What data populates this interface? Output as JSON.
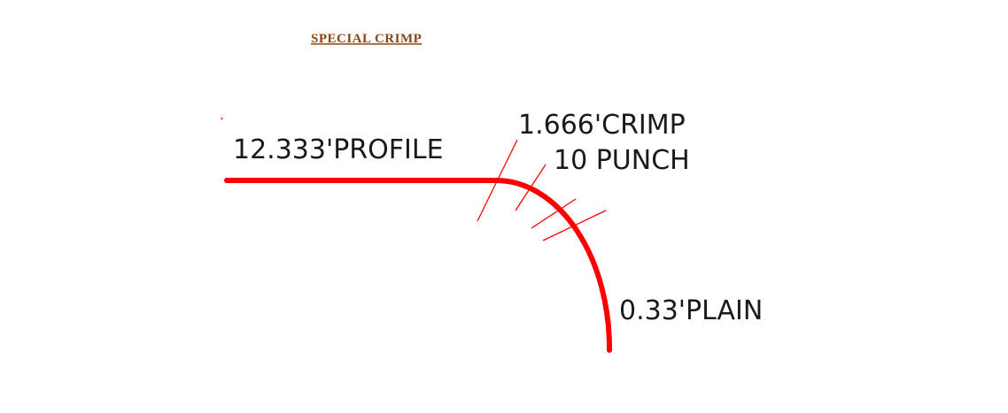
{
  "title": "SPECIAL CRIMP",
  "labels": {
    "profile": "12.333'PROFILE",
    "crimp": "1.666'CRIMP",
    "punch": "10 PUNCH",
    "plain": "0.33'PLAIN"
  },
  "colors": {
    "title": "#8b4513",
    "line": "#ff0000",
    "text": "#1a1a1a"
  }
}
